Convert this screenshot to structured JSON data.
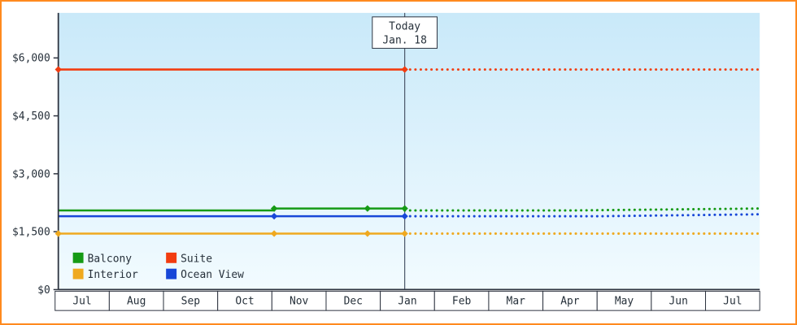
{
  "chart_data": {
    "type": "line",
    "title": "",
    "x_axis": {
      "months": [
        "Jul",
        "Aug",
        "Sep",
        "Oct",
        "Nov",
        "Dec",
        "Jan",
        "Feb",
        "Mar",
        "Apr",
        "May",
        "Jun",
        "Jul"
      ]
    },
    "y_axis": {
      "min": 0,
      "max": 6000,
      "ticks": [
        0,
        1500,
        3000,
        4500,
        6000
      ],
      "tick_labels": [
        "$0",
        "$1,500",
        "$3,000",
        "$4,500",
        "$6,000"
      ]
    },
    "today": {
      "line1": "Today",
      "line2": "Jan. 18",
      "t": 6.42
    },
    "series": [
      {
        "name": "Suite",
        "color": "#f23c10",
        "solid": [
          [
            0,
            5700
          ],
          [
            6.42,
            5700
          ]
        ],
        "dotted": [
          [
            6.42,
            5700
          ],
          [
            13,
            5700
          ]
        ],
        "markers": [
          [
            0,
            5700
          ],
          [
            6.42,
            5700
          ]
        ]
      },
      {
        "name": "Balcony",
        "color": "#159a15",
        "solid": [
          [
            0,
            2050
          ],
          [
            4,
            2050
          ],
          [
            4,
            2100
          ],
          [
            6.42,
            2100
          ]
        ],
        "dotted": [
          [
            6.42,
            2050
          ],
          [
            9.5,
            2050
          ],
          [
            13,
            2100
          ]
        ],
        "markers": [
          [
            4,
            2100
          ],
          [
            5.73,
            2100
          ],
          [
            6.42,
            2100
          ]
        ]
      },
      {
        "name": "Interior",
        "color": "#efa91f",
        "solid": [
          [
            0,
            1450
          ],
          [
            6.42,
            1450
          ]
        ],
        "dotted": [
          [
            6.42,
            1450
          ],
          [
            13,
            1450
          ]
        ],
        "markers": [
          [
            0,
            1450
          ],
          [
            4,
            1450
          ],
          [
            5.73,
            1450
          ],
          [
            6.42,
            1450
          ]
        ]
      },
      {
        "name": "Ocean View",
        "color": "#1847d8",
        "solid": [
          [
            0,
            1900
          ],
          [
            6.42,
            1900
          ]
        ],
        "dotted": [
          [
            6.42,
            1900
          ],
          [
            10,
            1900
          ],
          [
            13,
            1950
          ]
        ],
        "markers": [
          [
            4,
            1900
          ],
          [
            6.42,
            1900
          ]
        ]
      }
    ],
    "legend": {
      "items": [
        "Balcony",
        "Suite",
        "Interior",
        "Ocean View"
      ],
      "position": "bottom-left"
    }
  },
  "colors": {
    "frame_border": "#ff8a1e",
    "plot_bg_top": "#c9e9f9",
    "plot_bg_bottom": "#f2fbff",
    "axis": "#2e3440",
    "today_line": "#4a5568",
    "text": "#26303a"
  }
}
